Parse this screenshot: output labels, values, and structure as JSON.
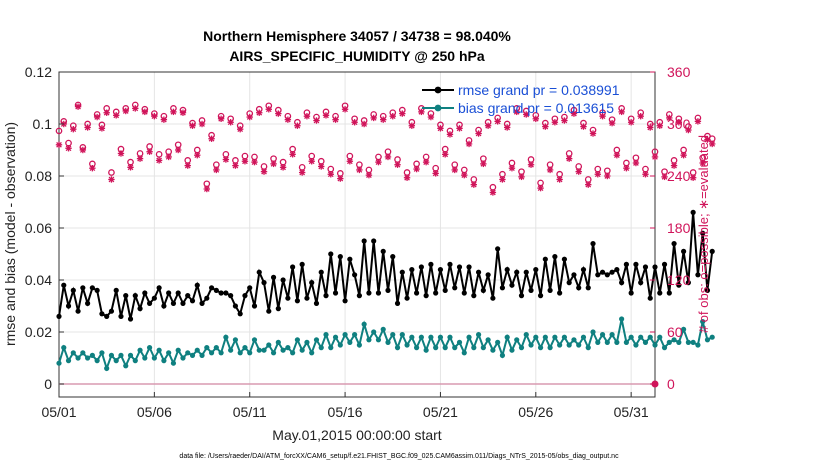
{
  "chart_data": {
    "type": "line",
    "title": "Northern Hemisphere 34057 / 34738 = 98.040%",
    "subtitle": "AIRS_SPECIFIC_HUMIDITY @ 250 hPa",
    "xlabel": "May.01,2015 00:00:00 start",
    "ylabel": "rmse and bias (model - observation)",
    "ylabel_right": "# of obs: o=possible; ∗=evaluated",
    "x_ticks": [
      "05/01",
      "05/06",
      "05/11",
      "05/16",
      "05/21",
      "05/26",
      "05/31"
    ],
    "x_range_days": [
      0,
      31.25
    ],
    "ylim": [
      -0.005,
      0.12
    ],
    "y_ticks": [
      "0",
      "0.02",
      "0.04",
      "0.06",
      "0.08",
      "0.1",
      "0.12"
    ],
    "ylim_right": [
      -15,
      360
    ],
    "y_ticks_right": [
      "0",
      "60",
      "120",
      "180",
      "240",
      "300",
      "360"
    ],
    "grid": true,
    "legend_position": "top-right",
    "colors": {
      "rmse": "#000000",
      "bias": "#0f8080",
      "obs": "#d0145a",
      "zero_line": "#d89ab0"
    },
    "rmse_values": [
      0.026,
      0.038,
      0.03,
      0.036,
      0.028,
      0.037,
      0.031,
      0.037,
      0.036,
      0.027,
      0.026,
      0.028,
      0.036,
      0.026,
      0.034,
      0.025,
      0.034,
      0.029,
      0.035,
      0.031,
      0.033,
      0.037,
      0.03,
      0.035,
      0.031,
      0.035,
      0.031,
      0.034,
      0.032,
      0.038,
      0.031,
      0.033,
      0.037,
      0.036,
      0.035,
      0.035,
      0.034,
      0.03,
      0.027,
      0.034,
      0.037,
      0.03,
      0.043,
      0.039,
      0.028,
      0.041,
      0.029,
      0.04,
      0.033,
      0.045,
      0.032,
      0.046,
      0.033,
      0.039,
      0.031,
      0.043,
      0.034,
      0.05,
      0.035,
      0.049,
      0.032,
      0.048,
      0.042,
      0.034,
      0.055,
      0.035,
      0.055,
      0.035,
      0.051,
      0.036,
      0.049,
      0.031,
      0.043,
      0.033,
      0.044,
      0.035,
      0.045,
      0.034,
      0.046,
      0.035,
      0.044,
      0.036,
      0.046,
      0.037,
      0.045,
      0.035,
      0.045,
      0.034,
      0.043,
      0.036,
      0.042,
      0.033,
      0.052,
      0.037,
      0.044,
      0.038,
      0.043,
      0.034,
      0.043,
      0.036,
      0.044,
      0.034,
      0.048,
      0.036,
      0.049,
      0.035,
      0.048,
      0.039,
      0.042,
      0.037,
      0.044,
      0.037,
      0.054,
      0.042,
      0.043,
      0.042,
      0.043,
      0.044,
      0.039,
      0.046,
      0.035,
      0.046,
      0.039,
      0.045,
      0.033,
      0.045,
      0.035,
      0.046,
      0.035,
      0.054,
      0.038,
      0.051,
      0.039,
      0.066,
      0.042,
      0.058,
      0.036,
      0.051
    ],
    "bias_values": [
      0.008,
      0.014,
      0.009,
      0.012,
      0.01,
      0.012,
      0.01,
      0.011,
      0.009,
      0.012,
      0.006,
      0.011,
      0.009,
      0.011,
      0.007,
      0.011,
      0.009,
      0.013,
      0.01,
      0.014,
      0.01,
      0.013,
      0.009,
      0.012,
      0.008,
      0.013,
      0.01,
      0.012,
      0.011,
      0.013,
      0.011,
      0.014,
      0.012,
      0.014,
      0.012,
      0.018,
      0.013,
      0.017,
      0.012,
      0.014,
      0.012,
      0.017,
      0.013,
      0.013,
      0.015,
      0.012,
      0.016,
      0.013,
      0.014,
      0.012,
      0.017,
      0.013,
      0.016,
      0.012,
      0.017,
      0.014,
      0.019,
      0.014,
      0.018,
      0.015,
      0.019,
      0.016,
      0.019,
      0.015,
      0.023,
      0.017,
      0.02,
      0.017,
      0.021,
      0.016,
      0.019,
      0.014,
      0.019,
      0.015,
      0.018,
      0.014,
      0.018,
      0.013,
      0.018,
      0.014,
      0.018,
      0.014,
      0.018,
      0.014,
      0.016,
      0.012,
      0.018,
      0.014,
      0.019,
      0.014,
      0.017,
      0.013,
      0.016,
      0.011,
      0.018,
      0.013,
      0.017,
      0.014,
      0.019,
      0.015,
      0.018,
      0.014,
      0.018,
      0.014,
      0.018,
      0.015,
      0.018,
      0.015,
      0.017,
      0.015,
      0.018,
      0.014,
      0.02,
      0.016,
      0.019,
      0.016,
      0.019,
      0.016,
      0.025,
      0.016,
      0.018,
      0.015,
      0.018,
      0.016,
      0.018,
      0.015,
      0.018,
      0.014,
      0.016,
      0.017,
      0.016,
      0.021,
      0.016,
      0.016,
      0.015,
      0.024,
      0.017,
      0.018
    ],
    "obs_possible": [
      292,
      303,
      278,
      298,
      322,
      273,
      300,
      254,
      311,
      299,
      318,
      244,
      314,
      271,
      318,
      256,
      322,
      266,
      317,
      274,
      312,
      265,
      309,
      268,
      318,
      276,
      316,
      258,
      301,
      270,
      304,
      231,
      287,
      253,
      309,
      265,
      306,
      258,
      298,
      263,
      312,
      262,
      317,
      251,
      321,
      260,
      316,
      256,
      309,
      271,
      302,
      250,
      313,
      263,
      308,
      257,
      314,
      248,
      309,
      243,
      321,
      263,
      306,
      253,
      304,
      247,
      311,
      262,
      309,
      268,
      313,
      259,
      316,
      244,
      302,
      254,
      318,
      262,
      312,
      249,
      299,
      271,
      292,
      253,
      299,
      247,
      281,
      236,
      293,
      260,
      302,
      227,
      307,
      242,
      300,
      255,
      318,
      245,
      315,
      259,
      310,
      232,
      301,
      253,
      306,
      242,
      308,
      266,
      316,
      251,
      301,
      236,
      293,
      248,
      313,
      246,
      305,
      270,
      318,
      255,
      306,
      261,
      313,
      248,
      300,
      268,
      302,
      245,
      311,
      258,
      306,
      270,
      297,
      244,
      307,
      261,
      286,
      283
    ],
    "obs_evaluated": [
      276,
      300,
      272,
      294,
      320,
      270,
      296,
      249,
      308,
      295,
      313,
      236,
      310,
      266,
      315,
      250,
      318,
      260,
      314,
      268,
      309,
      258,
      305,
      262,
      314,
      270,
      313,
      252,
      298,
      264,
      300,
      225,
      283,
      247,
      306,
      259,
      302,
      252,
      294,
      257,
      308,
      256,
      313,
      245,
      317,
      254,
      312,
      250,
      305,
      265,
      298,
      244,
      309,
      257,
      304,
      251,
      310,
      242,
      305,
      237,
      317,
      257,
      302,
      247,
      300,
      241,
      307,
      256,
      305,
      262,
      309,
      253,
      312,
      238,
      298,
      248,
      314,
      256,
      308,
      243,
      295,
      265,
      288,
      247,
      295,
      241,
      277,
      230,
      289,
      254,
      298,
      221,
      303,
      236,
      296,
      249,
      314,
      239,
      311,
      253,
      306,
      226,
      297,
      247,
      302,
      236,
      304,
      260,
      312,
      245,
      297,
      230,
      289,
      242,
      309,
      240,
      301,
      264,
      314,
      249,
      302,
      255,
      309,
      242,
      296,
      262,
      298,
      239,
      307,
      252,
      302,
      264,
      293,
      238,
      303,
      255,
      282,
      277
    ],
    "legend": [
      {
        "key": "rmse",
        "label": "rmse grand pr = 0.038991"
      },
      {
        "key": "bias",
        "label": "bias grand pr = 0.013615"
      }
    ]
  },
  "footnote": "data file: /Users/raeder/DAI/ATM_forcXX/CAM6_setup/f.e21.FHIST_BGC.f09_025.CAM6assim.011/Diags_NTrS_2015-05/obs_diag_output.nc"
}
